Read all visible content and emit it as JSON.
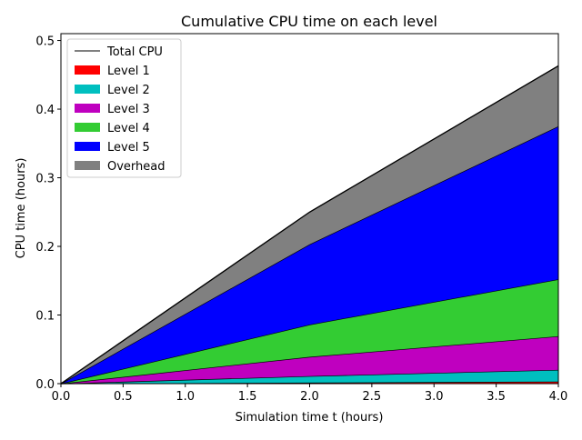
{
  "chart_data": {
    "type": "area",
    "title": "Cumulative CPU time on each level",
    "xlabel": "Simulation time t (hours)",
    "ylabel": "CPU time (hours)",
    "xlim": [
      0.0,
      4.0
    ],
    "ylim": [
      0.0,
      0.51
    ],
    "xticks": [
      "0.0",
      "0.5",
      "1.0",
      "1.5",
      "2.0",
      "2.5",
      "3.0",
      "3.5",
      "4.0"
    ],
    "yticks": [
      "0.0",
      "0.1",
      "0.2",
      "0.3",
      "0.4",
      "0.5"
    ],
    "x": [
      0.0,
      2.0,
      4.0
    ],
    "stacked": true,
    "legend_position": "top-left",
    "total": {
      "name": "Total CPU",
      "color": "#000000",
      "values": [
        0.0,
        0.25,
        0.463
      ]
    },
    "series": [
      {
        "name": "Level 1",
        "color": "#ff0000",
        "values": [
          0.0,
          0.0015,
          0.003
        ]
      },
      {
        "name": "Level 2",
        "color": "#00bfbf",
        "values": [
          0.0,
          0.0095,
          0.017
        ]
      },
      {
        "name": "Level 3",
        "color": "#bf00bf",
        "values": [
          0.0,
          0.028,
          0.049
        ]
      },
      {
        "name": "Level 4",
        "color": "#33cc33",
        "values": [
          0.0,
          0.047,
          0.083
        ]
      },
      {
        "name": "Level 5",
        "color": "#0000ff",
        "values": [
          0.0,
          0.117,
          0.223
        ]
      },
      {
        "name": "Overhead",
        "color": "#808080",
        "values": [
          0.0,
          0.047,
          0.088
        ]
      }
    ]
  }
}
